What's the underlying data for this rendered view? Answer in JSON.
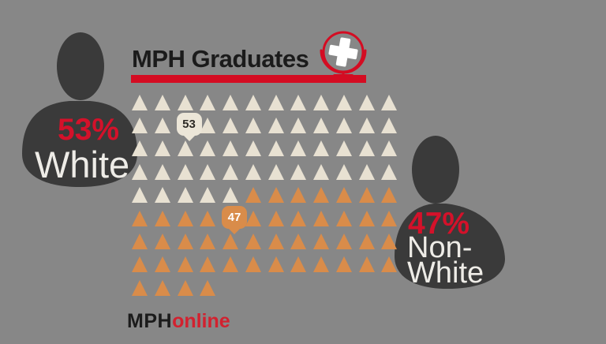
{
  "header": {
    "title": "MPH Graduates",
    "underline_color": "#d40c22",
    "icon": "globe-medical-cross-icon"
  },
  "left_person": {
    "percent": "53%",
    "label": "White"
  },
  "right_person": {
    "percent": "47%",
    "label_line1": "Non-",
    "label_line2": "White"
  },
  "footer": {
    "logo_bold": "MPH",
    "logo_accent": "online"
  },
  "chart_data": {
    "type": "pictograph",
    "title": "MPH Graduates",
    "categories": [
      "White",
      "Non-White"
    ],
    "values": [
      53,
      47
    ],
    "unit": "percent (100 triangle icons, 1 icon = 1%)",
    "icon_shape": "triangle",
    "colors": {
      "White": "#e8e1d2",
      "Non-White": "#d98c4a",
      "background": "#878787",
      "silhouette": "#3a3a3a",
      "accent_red": "#d40c22"
    },
    "badge_values": {
      "B": "53",
      "b": "47"
    },
    "grid": {
      "columns": 12,
      "row_count": 9,
      "rows": [
        "WWWWWWWWWWWW",
        "WWBWWWWWWWWW",
        "WWWWWWWWWWWW",
        "WWWWWWWWWWWW",
        "WWWWWNNNNNNN",
        "NNNNbNNNNNNN",
        "NNNNNNNNNNNN",
        "NNNNNNNNNNNN",
        "NNNN"
      ],
      "legend": {
        "W": "White triangle",
        "N": "Non-White triangle",
        "B": "White count badge (53)",
        "b": "Non-White count badge (47)"
      }
    },
    "annotations": [
      "53% White",
      "47% Non-White"
    ]
  }
}
